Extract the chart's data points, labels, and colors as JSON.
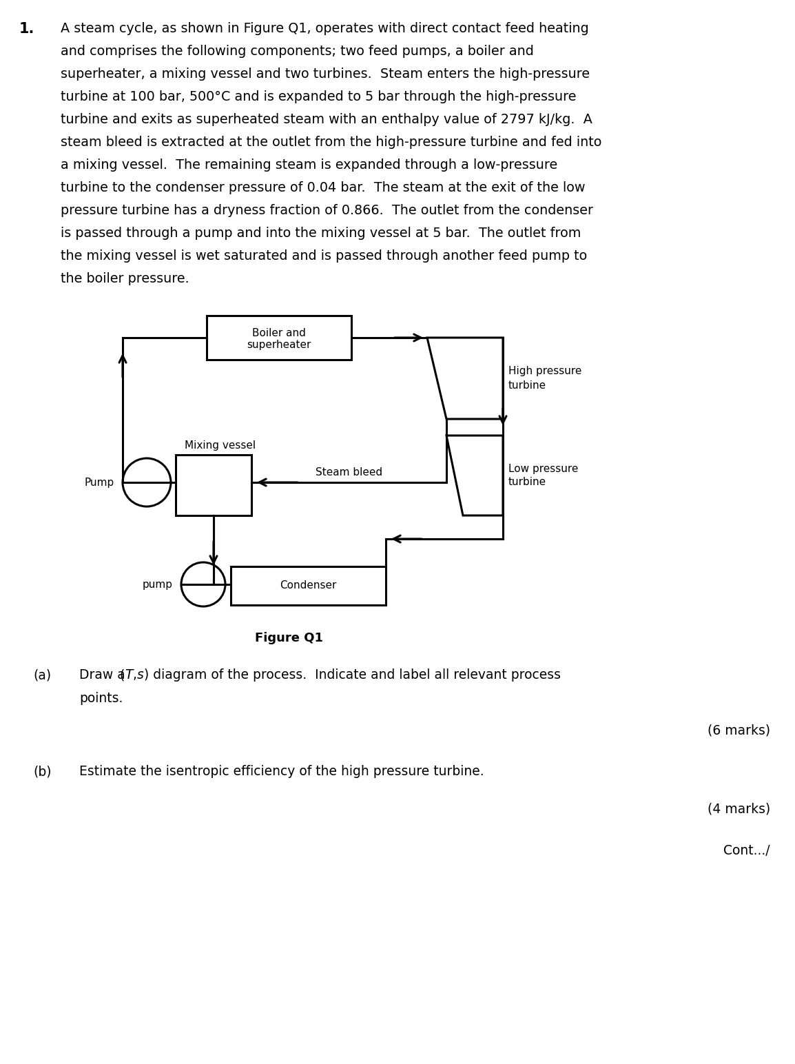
{
  "background_color": "#ffffff",
  "text_color": "#000000",
  "paragraph_lines": [
    "A steam cycle, as shown in Figure Q1, operates with direct contact feed heating",
    "and comprises the following components; two feed pumps, a boiler and",
    "superheater, a mixing vessel and two turbines.  Steam enters the high-pressure",
    "turbine at 100 bar, 500°C and is expanded to 5 bar through the high-pressure",
    "turbine and exits as superheated steam with an enthalpy value of 2797 kJ/kg.  A",
    "steam bleed is extracted at the outlet from the high-pressure turbine and fed into",
    "a mixing vessel.  The remaining steam is expanded through a low-pressure",
    "turbine to the condenser pressure of 0.04 bar.  The steam at the exit of the low",
    "pressure turbine has a dryness fraction of 0.866.  The outlet from the condenser",
    "is passed through a pump and into the mixing vessel at 5 bar.  The outlet from",
    "the mixing vessel is wet saturated and is passed through another feed pump to",
    "the boiler pressure."
  ],
  "figure_label": "Figure Q1",
  "part_a_label": "(a)",
  "part_a_marks": "(6 marks)",
  "part_b_label": "(b)",
  "part_b_text": "Estimate the isentropic efficiency of the high pressure turbine.",
  "part_b_marks": "(4 marks)",
  "cont": "Cont.../"
}
